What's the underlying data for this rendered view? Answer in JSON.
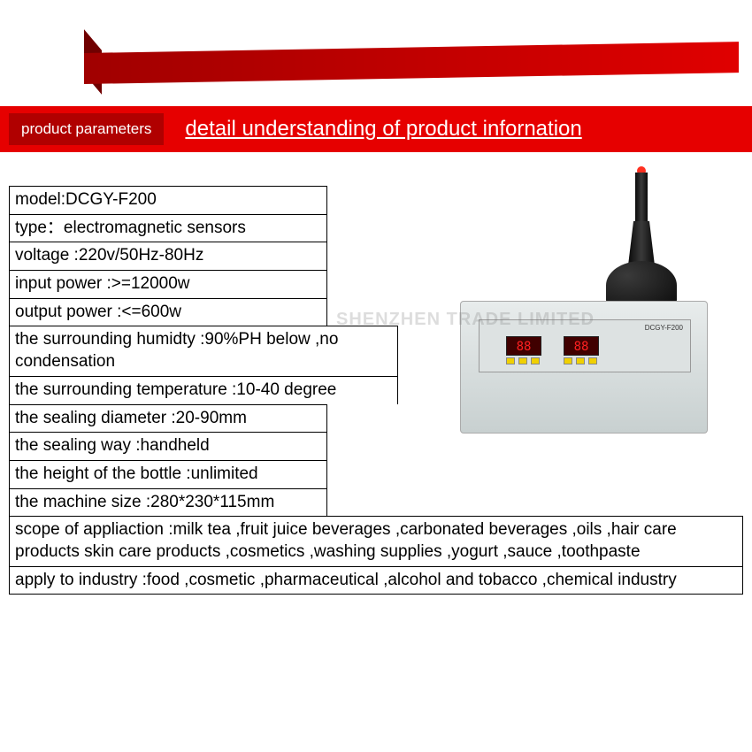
{
  "header": {
    "tab_label": "product parameters",
    "title": "detail understanding of product infornation"
  },
  "colors": {
    "banner_red": "#e60000",
    "banner_dark": "#b00000",
    "text": "#000000",
    "border": "#000000"
  },
  "specs": [
    {
      "text": "model:DCGY-F200",
      "width": "short"
    },
    {
      "text": "type：electromagnetic sensors",
      "width": "short"
    },
    {
      "text": "voltage :220v/50Hz-80Hz",
      "width": "short"
    },
    {
      "text": "input power :>=12000w",
      "width": "short"
    },
    {
      "text": "output power :<=600w",
      "width": "short"
    },
    {
      "text": "the surrounding humidty :90%PH below ,no condensation",
      "width": "med"
    },
    {
      "text": "the surrounding temperature :10-40 degree",
      "width": "med"
    },
    {
      "text": "the sealing diameter :20-90mm",
      "width": "short"
    },
    {
      "text": "the sealing way :handheld",
      "width": "short"
    },
    {
      "text": "the height of the bottle :unlimited",
      "width": "short"
    },
    {
      "text": "the machine size :280*230*115mm",
      "width": "short"
    },
    {
      "text": "scope of appliaction :milk tea ,fruit juice beverages ,carbonated beverages ,oils ,hair care products skin care products ,cosmetics ,washing supplies ,yogurt ,sauce ,toothpaste",
      "width": "full",
      "tall": true
    },
    {
      "text": "apply to industry :food ,cosmetic ,pharmaceutical ,alcohol and tobacco ,chemical industry",
      "width": "full"
    }
  ],
  "device": {
    "model_label": "DCGY-F200",
    "led1": "88",
    "led2": "88"
  },
  "watermark": "SHENZHEN            TRADE         LIMITED"
}
